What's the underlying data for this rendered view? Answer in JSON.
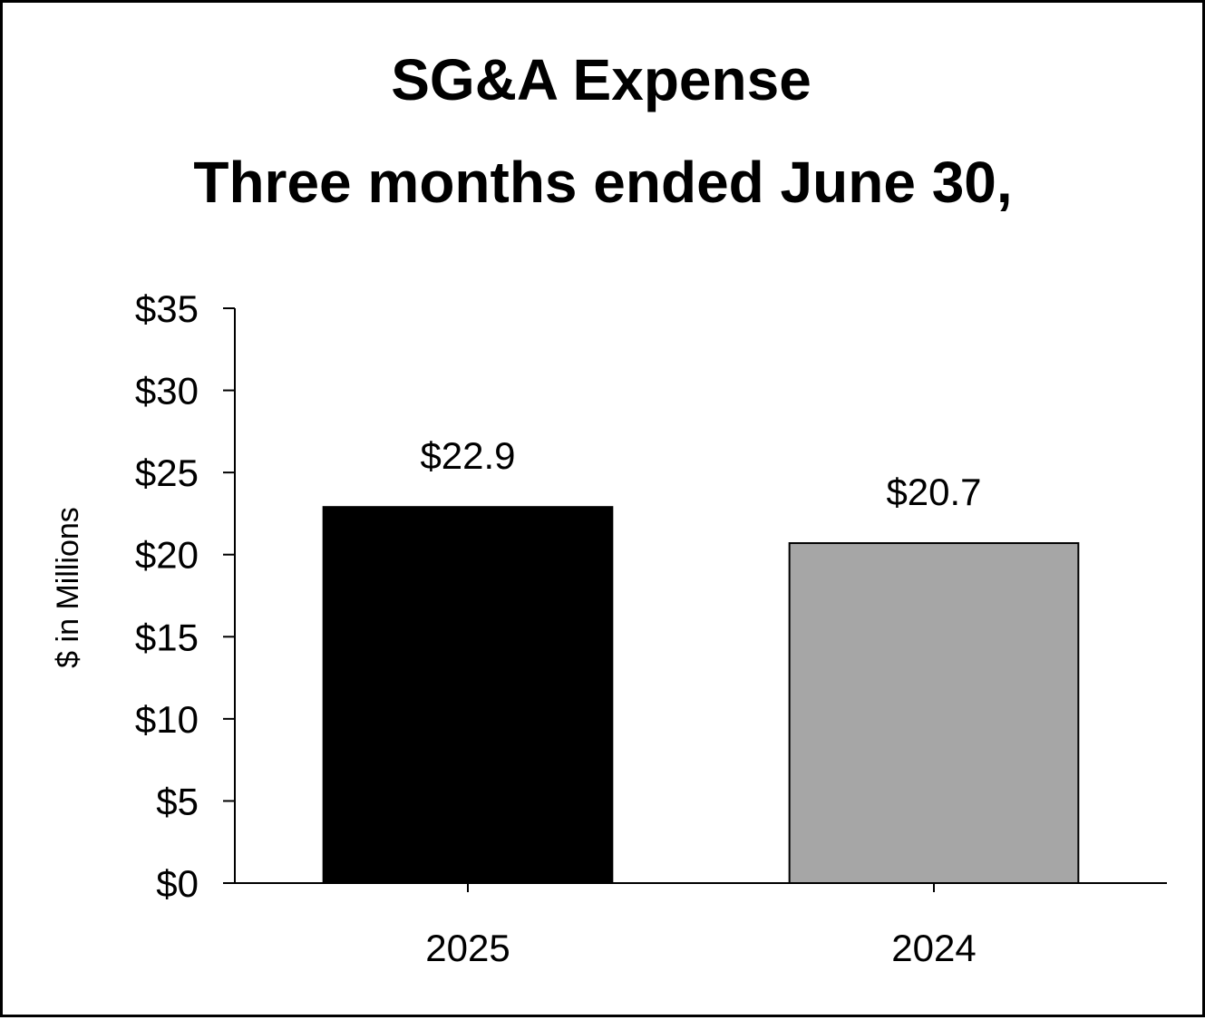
{
  "chart_data": {
    "type": "bar",
    "title": "SG&A Expense",
    "subtitle": "Three months ended June 30,",
    "xlabel": "",
    "ylabel": "$ in Millions",
    "categories": [
      "2025",
      "2024"
    ],
    "values": [
      22.9,
      20.7
    ],
    "data_labels": [
      "$22.9",
      "$20.7"
    ],
    "bar_colors": [
      "#000000",
      "#a6a6a6"
    ],
    "ylim": [
      0,
      35
    ],
    "yticks": [
      0,
      5,
      10,
      15,
      20,
      25,
      30,
      35
    ],
    "ytick_labels": [
      "$0",
      "$5",
      "$10",
      "$15",
      "$20",
      "$25",
      "$30",
      "$35"
    ],
    "grid": false,
    "legend": "none"
  }
}
